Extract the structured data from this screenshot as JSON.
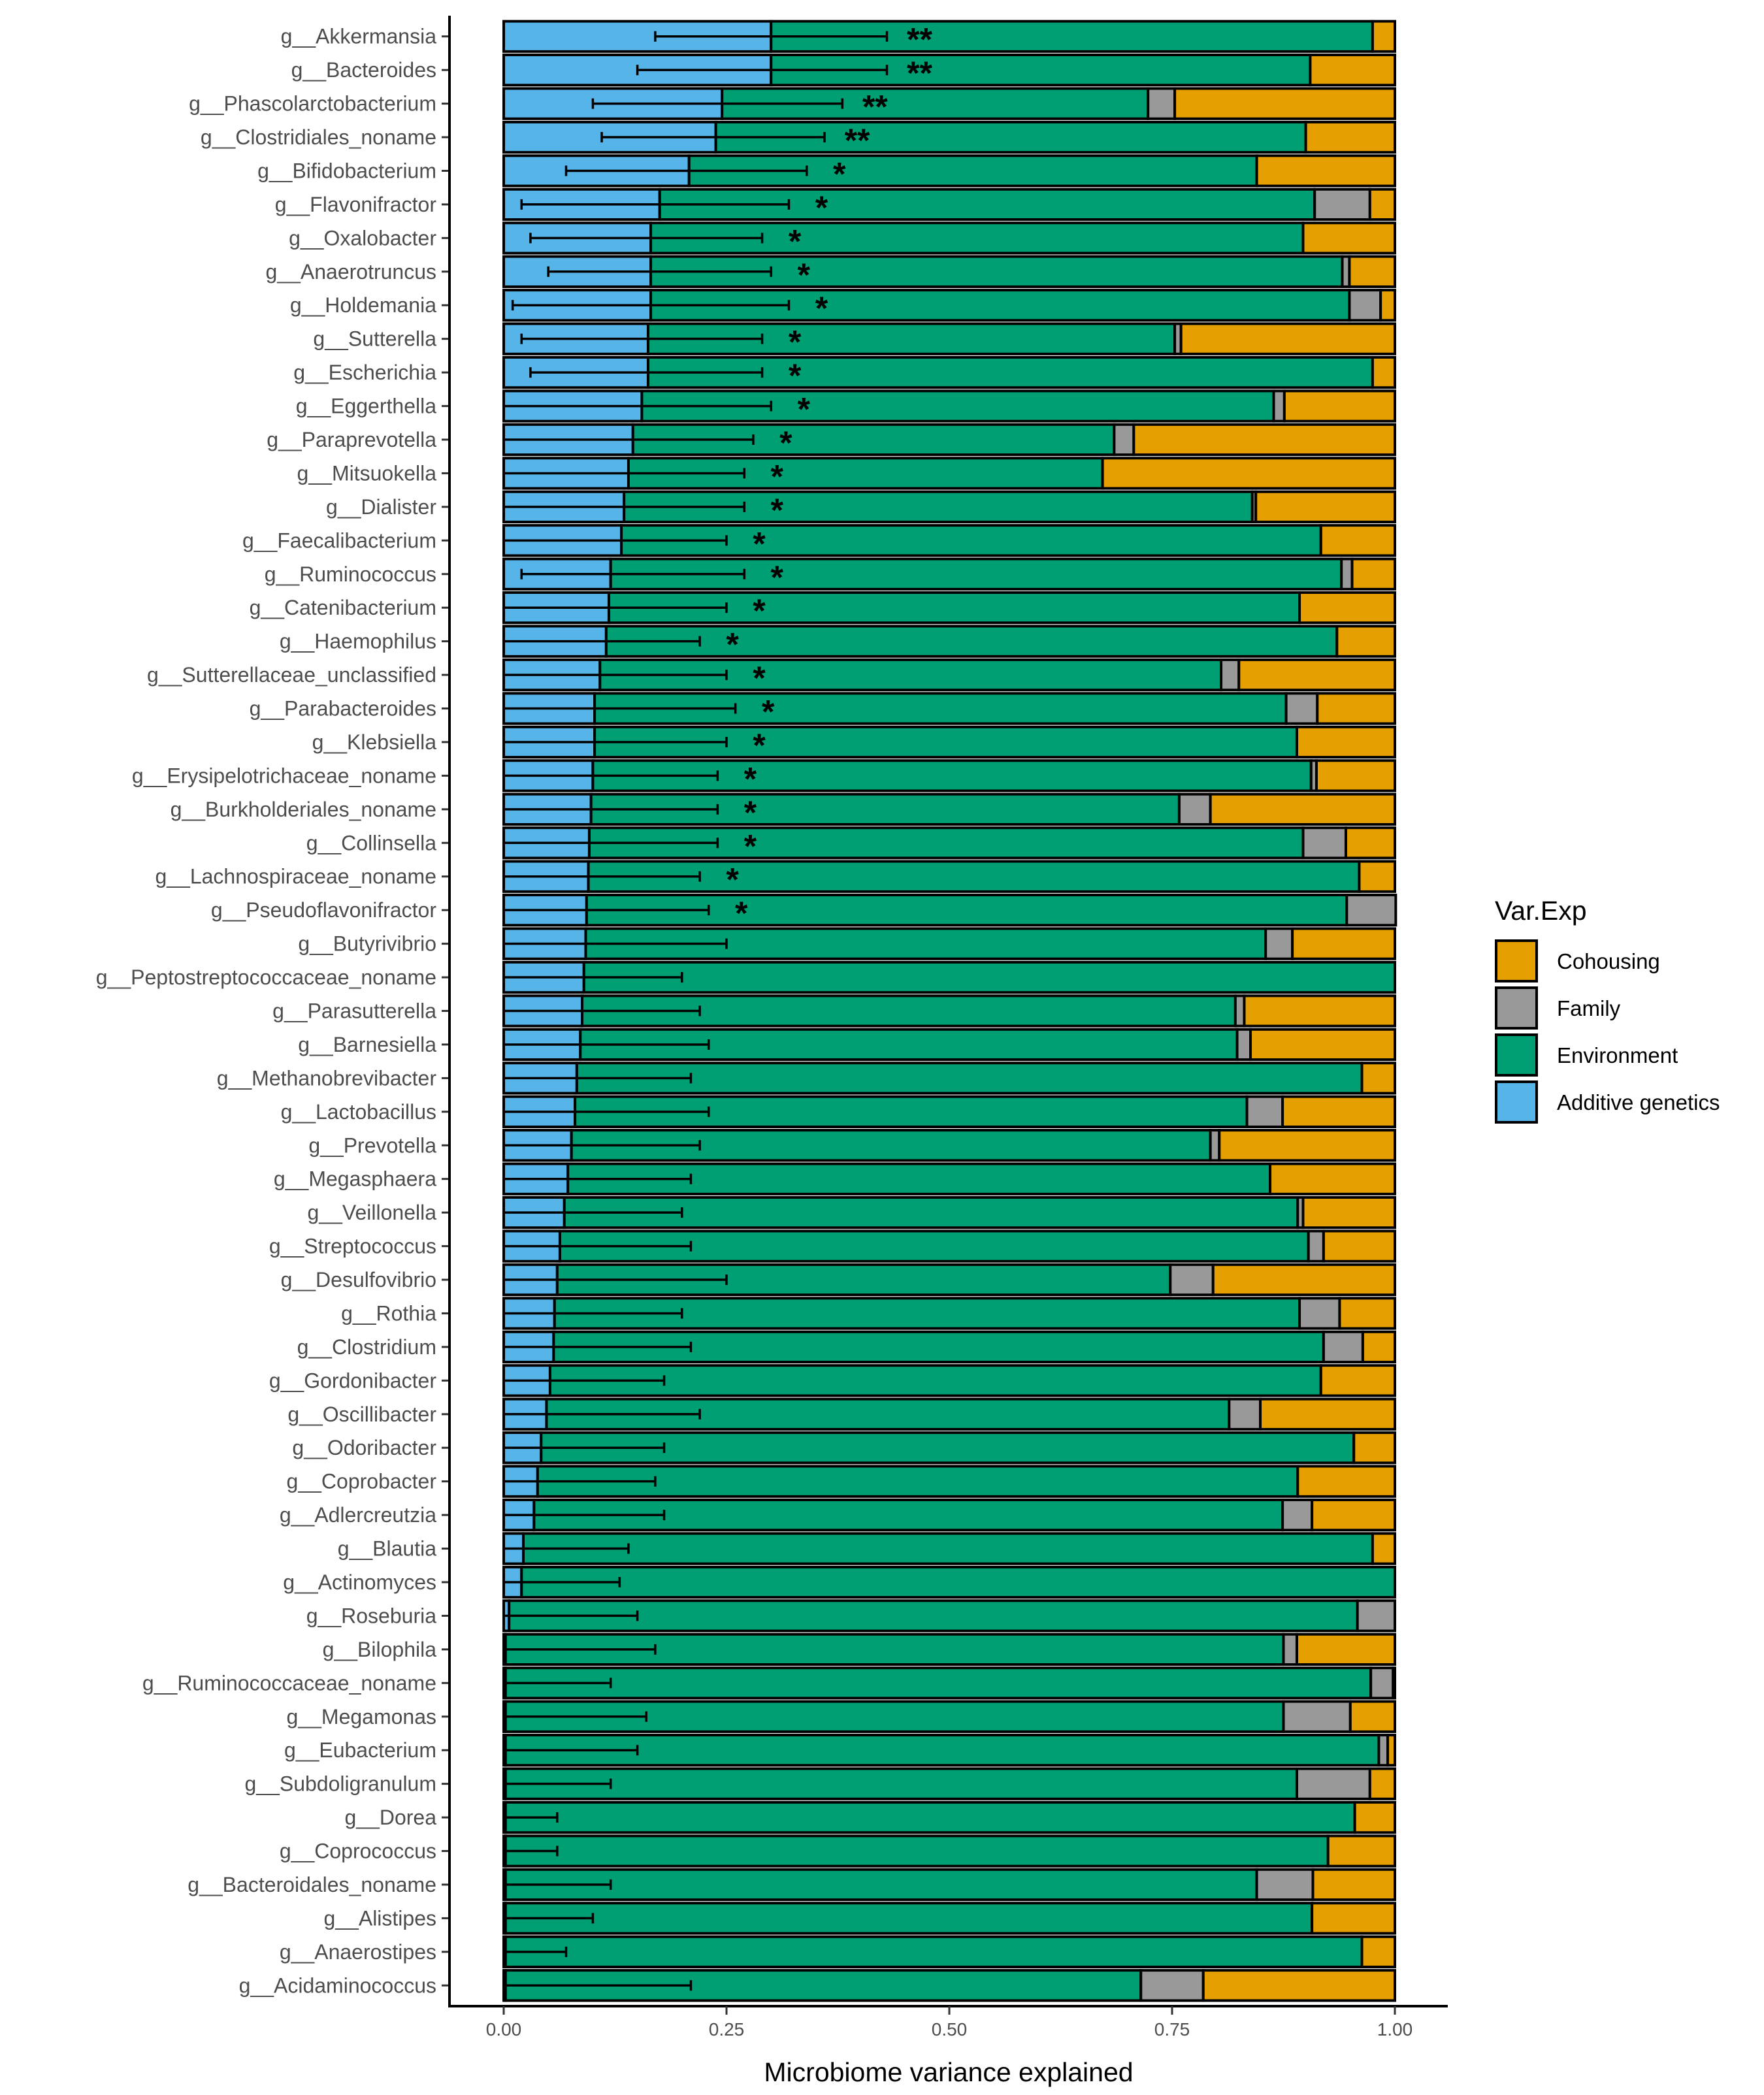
{
  "chart_data": {
    "type": "bar",
    "orientation": "horizontal",
    "stacked": true,
    "xlabel": "Microbiome variance explained",
    "ylabel": "",
    "xlim": [
      0,
      1
    ],
    "x_ticks": [
      "0.00",
      "0.25",
      "0.50",
      "0.75",
      "1.00"
    ],
    "grid": false,
    "legend": {
      "title": "Var.Exp",
      "placement": "right",
      "entries": [
        "Cohousing",
        "Family",
        "Environment",
        "Additive genetics"
      ]
    },
    "colors": {
      "Additive genetics": "#56B4E9",
      "Environment": "#009E73",
      "Family": "#999999",
      "Cohousing": "#E69F00"
    },
    "series_order": [
      "Additive genetics",
      "Environment",
      "Family",
      "Cohousing"
    ],
    "categories": [
      "g__Akkermansia",
      "g__Bacteroides",
      "g__Phascolarctobacterium",
      "g__Clostridiales_noname",
      "g__Bifidobacterium",
      "g__Flavonifractor",
      "g__Oxalobacter",
      "g__Anaerotruncus",
      "g__Holdemania",
      "g__Sutterella",
      "g__Escherichia",
      "g__Eggerthella",
      "g__Paraprevotella",
      "g__Mitsuokella",
      "g__Dialister",
      "g__Faecalibacterium",
      "g__Ruminococcus",
      "g__Catenibacterium",
      "g__Haemophilus",
      "g__Sutterellaceae_unclassified",
      "g__Parabacteroides",
      "g__Klebsiella",
      "g__Erysipelotrichaceae_noname",
      "g__Burkholderiales_noname",
      "g__Collinsella",
      "g__Lachnospiraceae_noname",
      "g__Pseudoflavonifractor",
      "g__Butyrivibrio",
      "g__Peptostreptococcaceae_noname",
      "g__Parasutterella",
      "g__Barnesiella",
      "g__Methanobrevibacter",
      "g__Lactobacillus",
      "g__Prevotella",
      "g__Megasphaera",
      "g__Veillonella",
      "g__Streptococcus",
      "g__Desulfovibrio",
      "g__Rothia",
      "g__Clostridium",
      "g__Gordonibacter",
      "g__Oscillibacter",
      "g__Odoribacter",
      "g__Coprobacter",
      "g__Adlercreutzia",
      "g__Blautia",
      "g__Actinomyces",
      "g__Roseburia",
      "g__Bilophila",
      "g__Ruminococcaceae_noname",
      "g__Megamonas",
      "g__Eubacterium",
      "g__Subdoligranulum",
      "g__Dorea",
      "g__Coprococcus",
      "g__Bacteroidales_noname",
      "g__Alistipes",
      "g__Anaerostipes",
      "g__Acidaminococcus"
    ],
    "series": [
      {
        "name": "Additive genetics",
        "values": [
          0.3,
          0.3,
          0.245,
          0.238,
          0.208,
          0.175,
          0.165,
          0.165,
          0.165,
          0.162,
          0.162,
          0.155,
          0.145,
          0.14,
          0.135,
          0.132,
          0.12,
          0.118,
          0.115,
          0.108,
          0.102,
          0.102,
          0.1,
          0.098,
          0.096,
          0.095,
          0.093,
          0.092,
          0.09,
          0.088,
          0.086,
          0.082,
          0.08,
          0.076,
          0.072,
          0.068,
          0.063,
          0.06,
          0.057,
          0.056,
          0.052,
          0.048,
          0.042,
          0.038,
          0.034,
          0.022,
          0.02,
          0.006,
          0.002,
          0.002,
          0.002,
          0.002,
          0.002,
          0.002,
          0.002,
          0.002,
          0.002,
          0.002,
          0.002
        ]
      },
      {
        "name": "Environment",
        "values": [
          0.675,
          0.605,
          0.478,
          0.662,
          0.637,
          0.735,
          0.732,
          0.776,
          0.784,
          0.591,
          0.813,
          0.709,
          0.54,
          0.532,
          0.705,
          0.785,
          0.82,
          0.775,
          0.82,
          0.697,
          0.776,
          0.788,
          0.806,
          0.66,
          0.801,
          0.865,
          0.853,
          0.763,
          0.91,
          0.733,
          0.737,
          0.881,
          0.754,
          0.717,
          0.788,
          0.823,
          0.84,
          0.688,
          0.836,
          0.864,
          0.865,
          0.766,
          0.912,
          0.853,
          0.84,
          0.953,
          0.98,
          0.952,
          0.873,
          0.971,
          0.873,
          0.98,
          0.888,
          0.953,
          0.923,
          0.843,
          0.905,
          0.961,
          0.713
        ]
      },
      {
        "name": "Family",
        "values": [
          0.0,
          0.0,
          0.03,
          0.0,
          0.0,
          0.062,
          0.0,
          0.008,
          0.035,
          0.007,
          0.0,
          0.012,
          0.022,
          0.0,
          0.004,
          0.0,
          0.012,
          0.0,
          0.0,
          0.02,
          0.035,
          0.0,
          0.006,
          0.035,
          0.048,
          0.0,
          0.055,
          0.03,
          0.0,
          0.01,
          0.015,
          0.0,
          0.04,
          0.01,
          0.0,
          0.006,
          0.017,
          0.048,
          0.045,
          0.044,
          0.0,
          0.035,
          0.0,
          0.0,
          0.033,
          0.0,
          0.0,
          0.042,
          0.015,
          0.025,
          0.075,
          0.01,
          0.082,
          0.0,
          0.0,
          0.063,
          0.0,
          0.0,
          0.07
        ]
      },
      {
        "name": "Cohousing",
        "values": [
          0.025,
          0.095,
          0.247,
          0.1,
          0.155,
          0.028,
          0.103,
          0.051,
          0.016,
          0.24,
          0.025,
          0.124,
          0.293,
          0.328,
          0.156,
          0.083,
          0.048,
          0.107,
          0.065,
          0.175,
          0.087,
          0.11,
          0.088,
          0.207,
          0.055,
          0.04,
          0.0,
          0.115,
          0.0,
          0.169,
          0.162,
          0.037,
          0.126,
          0.197,
          0.14,
          0.103,
          0.08,
          0.204,
          0.062,
          0.036,
          0.083,
          0.151,
          0.046,
          0.109,
          0.093,
          0.025,
          0.0,
          0.0,
          0.11,
          0.002,
          0.05,
          0.008,
          0.028,
          0.045,
          0.075,
          0.092,
          0.093,
          0.037,
          0.215
        ]
      }
    ],
    "error_bars": {
      "series": "Additive genetics",
      "lower": [
        0.17,
        0.15,
        0.1,
        0.11,
        0.07,
        0.02,
        0.03,
        0.05,
        0.01,
        0.02,
        0.03,
        0.0,
        0.0,
        0.0,
        0.0,
        0.0,
        0.02,
        0.0,
        0.0,
        0.0,
        0.0,
        0.0,
        0.0,
        0.0,
        0.0,
        0.0,
        0.0,
        0.0,
        0.0,
        0.0,
        0.0,
        0.0,
        0.0,
        0.0,
        0.0,
        0.0,
        0.0,
        0.0,
        0.0,
        0.0,
        0.0,
        0.0,
        0.0,
        0.0,
        0.0,
        0.0,
        0.0,
        0.0,
        0.0,
        0.0,
        0.0,
        0.0,
        0.0,
        0.0,
        0.0,
        0.0,
        0.0,
        0.0,
        0.0
      ],
      "upper": [
        0.43,
        0.43,
        0.38,
        0.36,
        0.34,
        0.32,
        0.29,
        0.3,
        0.32,
        0.29,
        0.29,
        0.3,
        0.28,
        0.27,
        0.27,
        0.25,
        0.27,
        0.25,
        0.22,
        0.25,
        0.26,
        0.25,
        0.24,
        0.24,
        0.24,
        0.22,
        0.23,
        0.25,
        0.2,
        0.22,
        0.23,
        0.21,
        0.23,
        0.22,
        0.21,
        0.2,
        0.21,
        0.25,
        0.2,
        0.21,
        0.18,
        0.22,
        0.18,
        0.17,
        0.18,
        0.14,
        0.13,
        0.15,
        0.17,
        0.12,
        0.16,
        0.15,
        0.12,
        0.06,
        0.06,
        0.12,
        0.1,
        0.07,
        0.21
      ]
    },
    "significance": [
      "**",
      "**",
      "**",
      "**",
      "*",
      "*",
      "*",
      "*",
      "*",
      "*",
      "*",
      "*",
      "*",
      "*",
      "*",
      "*",
      "*",
      "*",
      "*",
      "*",
      "*",
      "*",
      "*",
      "*",
      "*",
      "*",
      "*",
      "",
      "",
      "",
      "",
      "",
      "",
      "",
      "",
      "",
      "",
      "",
      "",
      "",
      "",
      "",
      "",
      "",
      "",
      "",
      "",
      "",
      "",
      "",
      "",
      "",
      "",
      "",
      "",
      "",
      "",
      "",
      ""
    ]
  }
}
